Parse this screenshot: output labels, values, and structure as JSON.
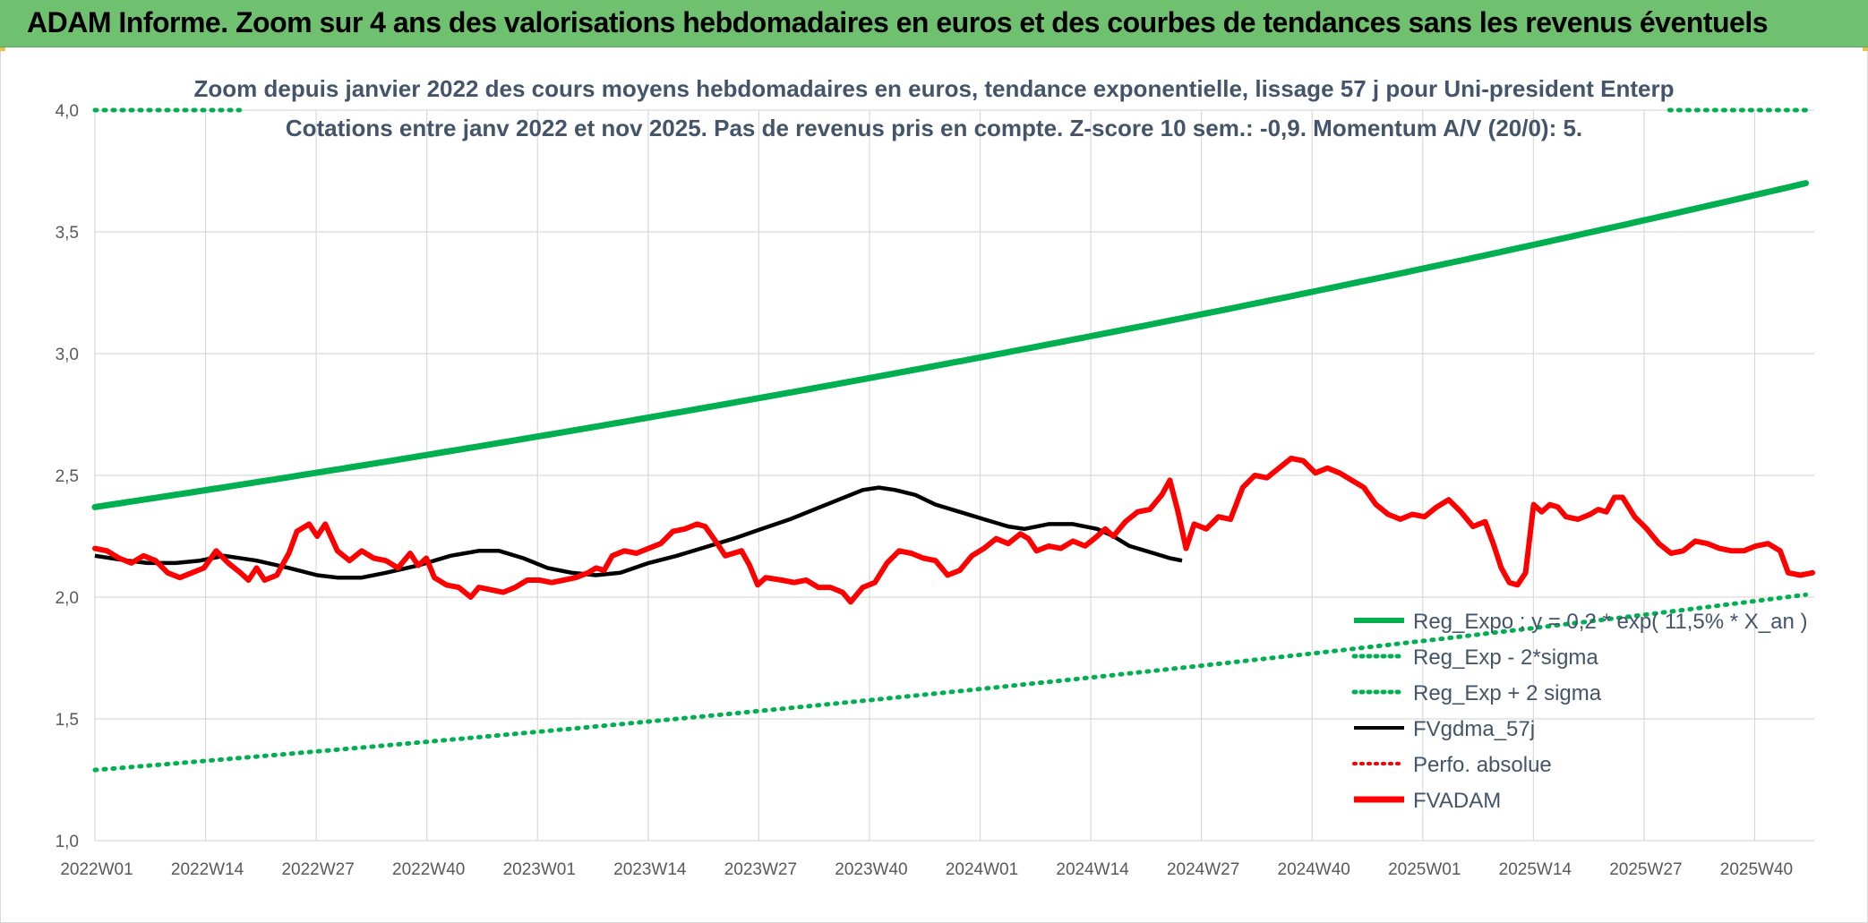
{
  "banner_title": "ADAM Informe. Zoom sur 4 ans des valorisations hebdomadaires en euros et des courbes de tendances sans les revenus éventuels",
  "chart_data": {
    "type": "line",
    "title_line1": "Zoom depuis janvier 2022 des cours moyens hebdomadaires en euros, tendance exponentielle, lissage 57 j pour Uni-president Enterp",
    "title_line2": "Cotations entre janv 2022 et nov 2025. Pas de revenus pris en compte. Z-score 10 sem.: -0,9. Momentum A/V (20/0): 5.",
    "ylim": [
      1.0,
      4.0
    ],
    "yticks": [
      "1,0",
      "1,5",
      "2,0",
      "2,5",
      "3,0",
      "3,5",
      "4,0"
    ],
    "x_tick_labels": [
      "2022W01",
      "2022W14",
      "2022W27",
      "2022W40",
      "2023W01",
      "2023W14",
      "2023W27",
      "2023W40",
      "2024W01",
      "2024W14",
      "2024W27",
      "2024W40",
      "2025W01",
      "2025W14",
      "2025W27",
      "2025W40"
    ],
    "weeks_total": 202,
    "colors": {
      "reg_expo": "#00b050",
      "sigma_band": "#00b050",
      "fvgdma": "#000000",
      "perfo": "#ff0000",
      "fvadam": "#ff0000"
    },
    "series": [
      {
        "name": "Reg_Expo ; y = 0,2 * exp( 11,5% *  X_an )",
        "key": "reg_expo",
        "start": 2.37,
        "end": 3.7
      },
      {
        "name": "Reg_Exp - 2*sigma",
        "key": "reg_minus",
        "start": 4.0,
        "end": 4.0,
        "visible_segments": [
          [
            0,
            17
          ],
          [
            185,
            201
          ]
        ]
      },
      {
        "name": "Reg_Exp + 2 sigma",
        "key": "reg_plus",
        "start": 1.29,
        "end": 2.01
      },
      {
        "name": "FVgdma_57j",
        "key": "fvgdma",
        "points": [
          [
            0,
            2.17
          ],
          [
            8,
            2.15
          ],
          [
            13,
            2.14
          ],
          [
            20,
            2.14
          ],
          [
            26,
            2.15
          ],
          [
            32,
            2.17
          ],
          [
            40,
            2.15
          ],
          [
            48,
            2.12
          ],
          [
            55,
            2.09
          ],
          [
            60,
            2.08
          ],
          [
            66,
            2.08
          ],
          [
            72,
            2.1
          ],
          [
            80,
            2.13
          ],
          [
            88,
            2.17
          ],
          [
            95,
            2.19
          ],
          [
            100,
            2.19
          ],
          [
            106,
            2.16
          ],
          [
            112,
            2.12
          ],
          [
            118,
            2.1
          ],
          [
            124,
            2.09
          ],
          [
            130,
            2.1
          ],
          [
            137,
            2.14
          ],
          [
            144,
            2.17
          ],
          [
            150,
            2.2
          ],
          [
            158,
            2.24
          ],
          [
            165,
            2.28
          ],
          [
            172,
            2.32
          ],
          [
            178,
            2.36
          ],
          [
            184,
            2.4
          ],
          [
            190,
            2.44
          ],
          [
            194,
            2.45
          ],
          [
            198,
            2.44
          ],
          [
            203,
            2.42
          ],
          [
            208,
            2.38
          ],
          [
            214,
            2.35
          ],
          [
            220,
            2.32
          ],
          [
            226,
            2.29
          ],
          [
            230,
            2.28
          ],
          [
            236,
            2.3
          ],
          [
            242,
            2.3
          ],
          [
            248,
            2.28
          ],
          [
            252,
            2.25
          ],
          [
            256,
            2.21
          ],
          [
            262,
            2.18
          ],
          [
            266,
            2.16
          ],
          [
            269,
            2.15
          ]
        ]
      },
      {
        "name": "Perfo. absolue",
        "key": "perfo"
      },
      {
        "name": "FVADAM",
        "key": "fvadam",
        "points": [
          [
            0,
            2.2
          ],
          [
            3,
            2.19
          ],
          [
            6,
            2.16
          ],
          [
            9,
            2.14
          ],
          [
            12,
            2.17
          ],
          [
            15,
            2.15
          ],
          [
            18,
            2.1
          ],
          [
            21,
            2.08
          ],
          [
            24,
            2.1
          ],
          [
            27,
            2.12
          ],
          [
            30,
            2.19
          ],
          [
            33,
            2.14
          ],
          [
            36,
            2.1
          ],
          [
            38,
            2.07
          ],
          [
            40,
            2.12
          ],
          [
            42,
            2.07
          ],
          [
            45,
            2.09
          ],
          [
            48,
            2.18
          ],
          [
            50,
            2.27
          ],
          [
            53,
            2.3
          ],
          [
            55,
            2.25
          ],
          [
            57,
            2.3
          ],
          [
            60,
            2.19
          ],
          [
            63,
            2.15
          ],
          [
            66,
            2.19
          ],
          [
            69,
            2.16
          ],
          [
            72,
            2.15
          ],
          [
            75,
            2.12
          ],
          [
            78,
            2.18
          ],
          [
            80,
            2.13
          ],
          [
            82,
            2.16
          ],
          [
            84,
            2.08
          ],
          [
            87,
            2.05
          ],
          [
            90,
            2.04
          ],
          [
            93,
            2.0
          ],
          [
            95,
            2.04
          ],
          [
            98,
            2.03
          ],
          [
            101,
            2.02
          ],
          [
            104,
            2.04
          ],
          [
            107,
            2.07
          ],
          [
            110,
            2.07
          ],
          [
            113,
            2.06
          ],
          [
            116,
            2.07
          ],
          [
            119,
            2.08
          ],
          [
            122,
            2.1
          ],
          [
            124,
            2.12
          ],
          [
            126,
            2.11
          ],
          [
            128,
            2.17
          ],
          [
            131,
            2.19
          ],
          [
            134,
            2.18
          ],
          [
            137,
            2.2
          ],
          [
            140,
            2.22
          ],
          [
            143,
            2.27
          ],
          [
            146,
            2.28
          ],
          [
            149,
            2.3
          ],
          [
            151,
            2.29
          ],
          [
            154,
            2.22
          ],
          [
            156,
            2.17
          ],
          [
            158,
            2.18
          ],
          [
            160,
            2.19
          ],
          [
            162,
            2.13
          ],
          [
            164,
            2.05
          ],
          [
            166,
            2.08
          ],
          [
            170,
            2.07
          ],
          [
            173,
            2.06
          ],
          [
            176,
            2.07
          ],
          [
            179,
            2.04
          ],
          [
            182,
            2.04
          ],
          [
            185,
            2.02
          ],
          [
            187,
            1.98
          ],
          [
            190,
            2.04
          ],
          [
            193,
            2.06
          ],
          [
            196,
            2.14
          ],
          [
            199,
            2.19
          ],
          [
            202,
            2.18
          ],
          [
            205,
            2.16
          ],
          [
            208,
            2.15
          ],
          [
            211,
            2.09
          ],
          [
            214,
            2.11
          ],
          [
            217,
            2.17
          ],
          [
            220,
            2.2
          ],
          [
            223,
            2.24
          ],
          [
            226,
            2.22
          ],
          [
            229,
            2.26
          ],
          [
            231,
            2.24
          ],
          [
            233,
            2.19
          ],
          [
            236,
            2.21
          ],
          [
            239,
            2.2
          ],
          [
            242,
            2.23
          ],
          [
            245,
            2.21
          ],
          [
            248,
            2.25
          ],
          [
            250,
            2.28
          ],
          [
            252,
            2.25
          ],
          [
            255,
            2.31
          ],
          [
            258,
            2.35
          ],
          [
            261,
            2.36
          ],
          [
            264,
            2.42
          ],
          [
            266,
            2.48
          ],
          [
            268,
            2.35
          ],
          [
            270,
            2.2
          ],
          [
            272,
            2.3
          ],
          [
            275,
            2.28
          ],
          [
            278,
            2.33
          ],
          [
            281,
            2.32
          ],
          [
            284,
            2.45
          ],
          [
            287,
            2.5
          ],
          [
            290,
            2.49
          ],
          [
            293,
            2.53
          ],
          [
            296,
            2.57
          ],
          [
            299,
            2.56
          ],
          [
            302,
            2.51
          ],
          [
            305,
            2.53
          ],
          [
            308,
            2.51
          ],
          [
            311,
            2.48
          ],
          [
            314,
            2.45
          ],
          [
            317,
            2.38
          ],
          [
            320,
            2.34
          ],
          [
            323,
            2.32
          ],
          [
            326,
            2.34
          ],
          [
            329,
            2.33
          ],
          [
            332,
            2.37
          ],
          [
            335,
            2.4
          ],
          [
            338,
            2.35
          ],
          [
            341,
            2.29
          ],
          [
            344,
            2.31
          ],
          [
            346,
            2.22
          ],
          [
            348,
            2.12
          ],
          [
            350,
            2.06
          ],
          [
            352,
            2.05
          ],
          [
            354,
            2.1
          ],
          [
            356,
            2.38
          ],
          [
            358,
            2.35
          ],
          [
            360,
            2.38
          ],
          [
            362,
            2.37
          ],
          [
            364,
            2.33
          ],
          [
            367,
            2.32
          ],
          [
            370,
            2.34
          ],
          [
            372,
            2.36
          ],
          [
            374,
            2.35
          ],
          [
            376,
            2.41
          ],
          [
            378,
            2.41
          ],
          [
            381,
            2.33
          ],
          [
            384,
            2.28
          ],
          [
            387,
            2.22
          ],
          [
            390,
            2.18
          ],
          [
            393,
            2.19
          ],
          [
            396,
            2.23
          ],
          [
            399,
            2.22
          ],
          [
            402,
            2.2
          ],
          [
            405,
            2.19
          ],
          [
            408,
            2.19
          ],
          [
            411,
            2.21
          ],
          [
            414,
            2.22
          ],
          [
            417,
            2.19
          ],
          [
            419,
            2.1
          ],
          [
            422,
            2.09
          ],
          [
            425,
            2.1
          ]
        ]
      }
    ],
    "legend_position": "bottom-right"
  }
}
